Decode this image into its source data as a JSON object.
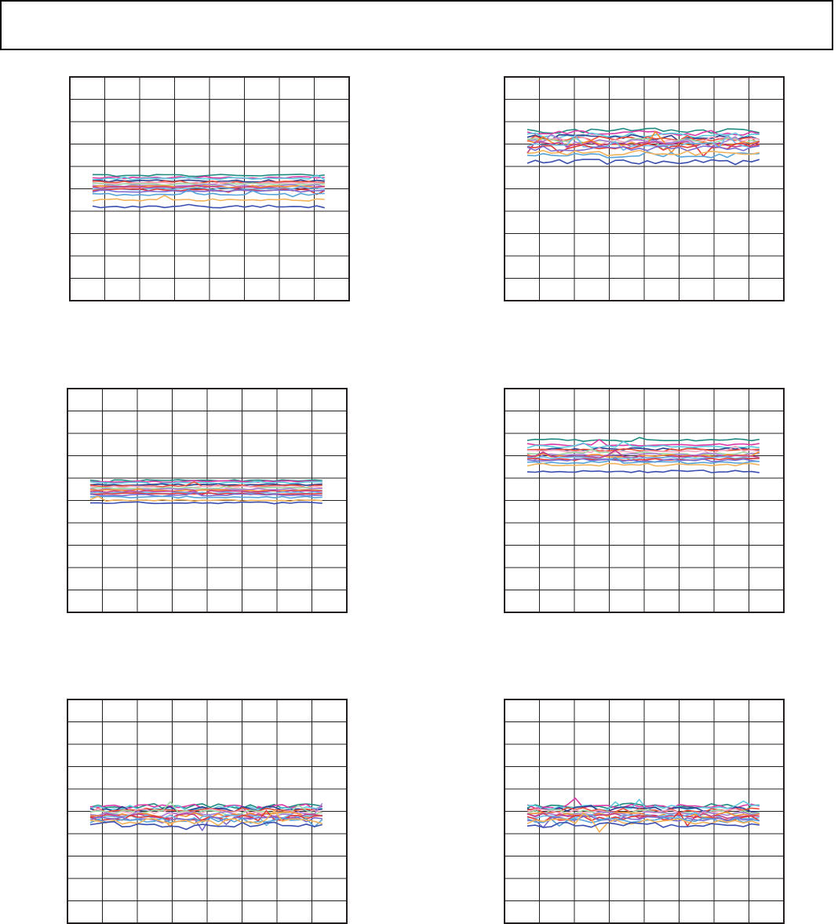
{
  "page": {
    "header_text": ""
  },
  "palette": [
    "#1f8a80",
    "#d93aa6",
    "#5fcbe0",
    "#2a3d8f",
    "#e8503a",
    "#f4a5c0",
    "#9ed9a6",
    "#a87fd4",
    "#f28b30",
    "#c13c8a",
    "#6fb7e6",
    "#e03a3a",
    "#7c6bd0",
    "#55a3d9",
    "#f2b25a",
    "#3a4fb0"
  ],
  "chart_data": [
    {
      "id": "panel-1",
      "type": "line",
      "title": "",
      "xlabel": "",
      "ylabel": "",
      "x_divisions": 8,
      "y_divisions": 10,
      "ylim": [
        0,
        10
      ],
      "grid": true,
      "legend": "none",
      "n_points": 30,
      "x_start": 0.65,
      "x_end": 7.3,
      "series_levels": [
        5.6,
        5.5,
        5.45,
        5.35,
        5.3,
        5.25,
        5.2,
        5.15,
        5.1,
        5.05,
        5.0,
        4.95,
        4.9,
        4.75,
        4.5,
        4.2
      ],
      "noise": 0.05
    },
    {
      "id": "panel-2",
      "type": "line",
      "title": "",
      "xlabel": "",
      "ylabel": "",
      "x_divisions": 8,
      "y_divisions": 10,
      "ylim": [
        0,
        10
      ],
      "grid": true,
      "legend": "none",
      "n_points": 30,
      "x_start": 0.65,
      "x_end": 7.3,
      "series_levels": [
        7.6,
        7.5,
        7.4,
        7.3,
        7.25,
        7.2,
        7.15,
        7.1,
        7.05,
        7.0,
        6.95,
        6.9,
        6.8,
        6.5,
        6.6,
        6.2
      ],
      "noise": 0.12
    },
    {
      "id": "panel-3",
      "type": "line",
      "title": "",
      "xlabel": "",
      "ylabel": "",
      "x_divisions": 8,
      "y_divisions": 10,
      "ylim": [
        0,
        10
      ],
      "grid": true,
      "legend": "none",
      "n_points": 30,
      "x_start": 0.65,
      "x_end": 7.3,
      "series_levels": [
        5.9,
        5.85,
        5.8,
        5.7,
        5.65,
        5.6,
        5.55,
        5.5,
        5.45,
        5.4,
        5.35,
        5.3,
        5.25,
        5.15,
        5.0,
        4.9
      ],
      "noise": 0.04
    },
    {
      "id": "panel-4",
      "type": "line",
      "title": "",
      "xlabel": "",
      "ylabel": "",
      "x_divisions": 8,
      "y_divisions": 10,
      "ylim": [
        0,
        10
      ],
      "grid": true,
      "legend": "none",
      "n_points": 30,
      "x_start": 0.65,
      "x_end": 7.3,
      "series_levels": [
        7.7,
        7.5,
        7.4,
        7.3,
        7.25,
        7.2,
        7.1,
        7.05,
        7.0,
        6.95,
        6.9,
        6.85,
        6.8,
        6.7,
        6.6,
        6.3
      ],
      "noise": 0.06
    },
    {
      "id": "panel-5",
      "type": "line",
      "title": "",
      "xlabel": "",
      "ylabel": "",
      "x_divisions": 8,
      "y_divisions": 10,
      "ylim": [
        0,
        10
      ],
      "grid": true,
      "legend": "none",
      "n_points": 30,
      "x_start": 0.65,
      "x_end": 7.3,
      "series_levels": [
        5.25,
        5.2,
        5.15,
        5.1,
        5.05,
        5.0,
        4.95,
        4.9,
        4.85,
        4.8,
        4.75,
        4.7,
        4.65,
        4.6,
        4.55,
        4.4
      ],
      "noise": 0.12
    },
    {
      "id": "panel-6",
      "type": "line",
      "title": "",
      "xlabel": "",
      "ylabel": "",
      "x_divisions": 8,
      "y_divisions": 10,
      "ylim": [
        0,
        10
      ],
      "grid": true,
      "legend": "none",
      "n_points": 30,
      "x_start": 0.65,
      "x_end": 7.3,
      "series_levels": [
        5.25,
        5.2,
        5.15,
        5.1,
        5.05,
        5.0,
        4.95,
        4.9,
        4.85,
        4.8,
        4.75,
        4.7,
        4.65,
        4.6,
        4.55,
        4.4
      ],
      "noise": 0.12
    }
  ]
}
